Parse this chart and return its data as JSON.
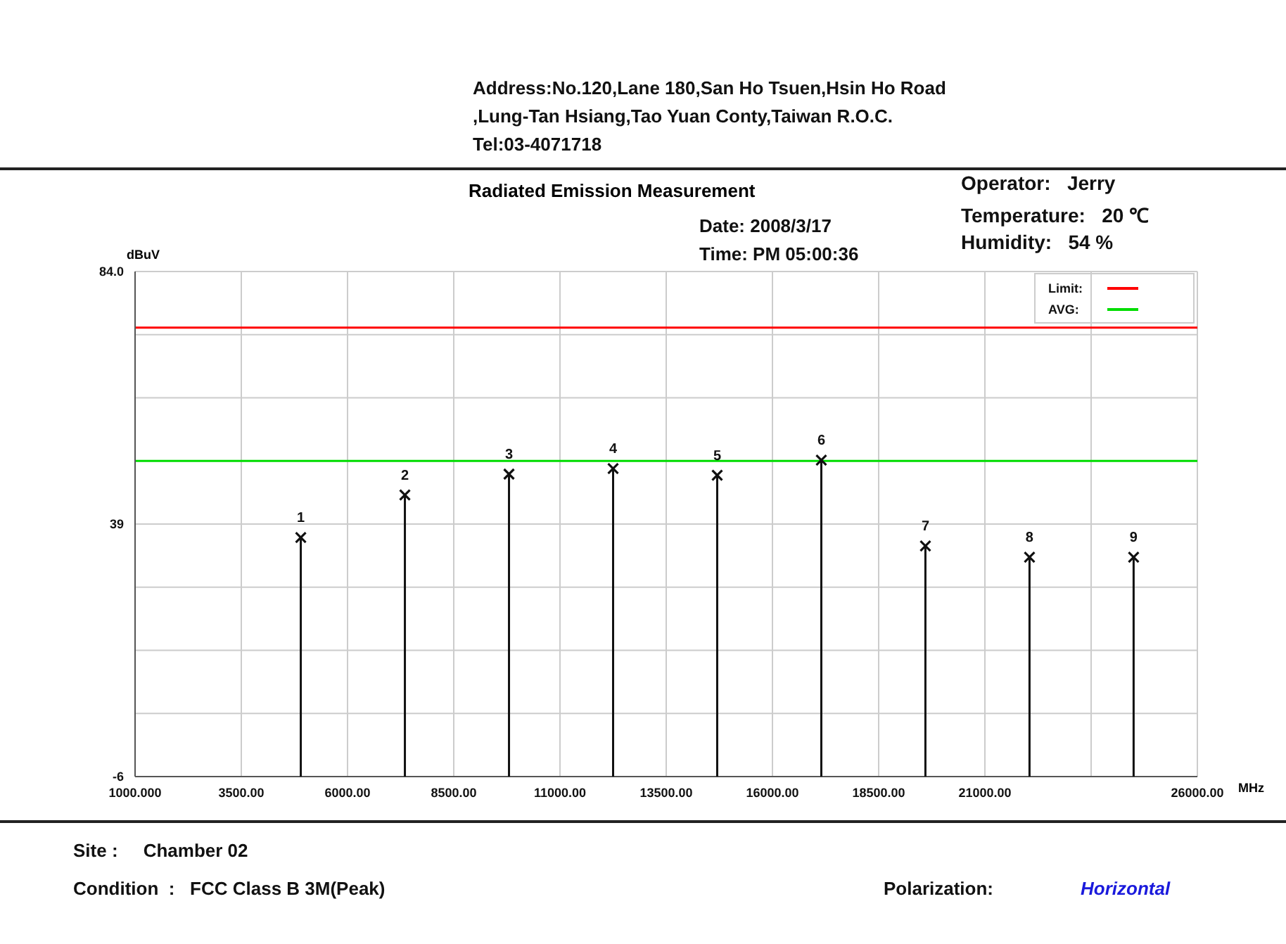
{
  "chart_data": {
    "type": "lollipop",
    "title": "Radiated Emission Measurement",
    "xlabel": "MHz",
    "ylabel": "dBuV",
    "x": [
      4900,
      7350,
      9800,
      12250,
      14700,
      17150,
      19600,
      22050,
      24500
    ],
    "values": [
      36.6,
      44.2,
      47.9,
      48.9,
      47.7,
      50.4,
      35.1,
      33.1,
      33.1
    ],
    "color": "#111111",
    "marker": "cross",
    "xlim": [
      1000,
      26000
    ],
    "xticks": [
      {
        "value": 1000,
        "label": "1000.000"
      },
      {
        "value": 3500,
        "label": "3500.00"
      },
      {
        "value": 6000,
        "label": "6000.00"
      },
      {
        "value": 8500,
        "label": "8500.00"
      },
      {
        "value": 11000,
        "label": "11000.00"
      },
      {
        "value": 13500,
        "label": "13500.00"
      },
      {
        "value": 16000,
        "label": "16000.00"
      },
      {
        "value": 18500,
        "label": "18500.00"
      },
      {
        "value": 21000,
        "label": "21000.00"
      },
      {
        "value": 23500,
        "label": null
      },
      {
        "value": 26000,
        "label": "26000.00"
      }
    ],
    "ylim": [
      -6,
      84
    ],
    "yticks": [
      {
        "value": -6,
        "label": "-6"
      },
      {
        "value": 5.25,
        "label": null
      },
      {
        "value": 16.5,
        "label": null
      },
      {
        "value": 27.75,
        "label": null
      },
      39,
      {
        "value": 50.25,
        "label": null
      },
      {
        "value": 61.5,
        "label": null
      },
      {
        "value": 72.75,
        "label": null
      },
      {
        "value": 84,
        "label": "84.0"
      }
    ],
    "grid": true,
    "legend": "top right",
    "ref_lines": [
      {
        "axis": "y",
        "value": 74,
        "label": "Limit:",
        "color": "#ff0000"
      },
      {
        "axis": "y",
        "value": 50.25,
        "label": "AVG:",
        "color": "#00dd00"
      }
    ],
    "annotations": [
      "Address:No.120,Lane 180,San Ho Tsuen,Hsin Ho Road",
      ",Lung-Tan Hsiang,Tao Yuan Conty,Taiwan R.O.C.",
      "Tel:03-4071718",
      "Date: 2008/3/17",
      "Time: PM 05:00:36",
      "Operator:   Jerry",
      "Temperature:   20 ℃",
      "Humidity:   54 %",
      "Site :     Chamber 02",
      "Condition  :   FCC Class B 3M(Peak)",
      "Polarization:",
      "Horizontal",
      {
        "text": "1",
        "x": 4900,
        "y": 36.6
      },
      {
        "text": "2",
        "x": 7350,
        "y": 44.2
      },
      {
        "text": "3",
        "x": 9800,
        "y": 47.9
      },
      {
        "text": "4",
        "x": 12250,
        "y": 48.9
      },
      {
        "text": "5",
        "x": 14700,
        "y": 47.7
      },
      {
        "text": "6",
        "x": 17150,
        "y": 50.4
      },
      {
        "text": "7",
        "x": 19600,
        "y": 35.1
      },
      {
        "text": "8",
        "x": 22050,
        "y": 33.1
      },
      {
        "text": "9",
        "x": 24500,
        "y": 33.1
      }
    ]
  }
}
